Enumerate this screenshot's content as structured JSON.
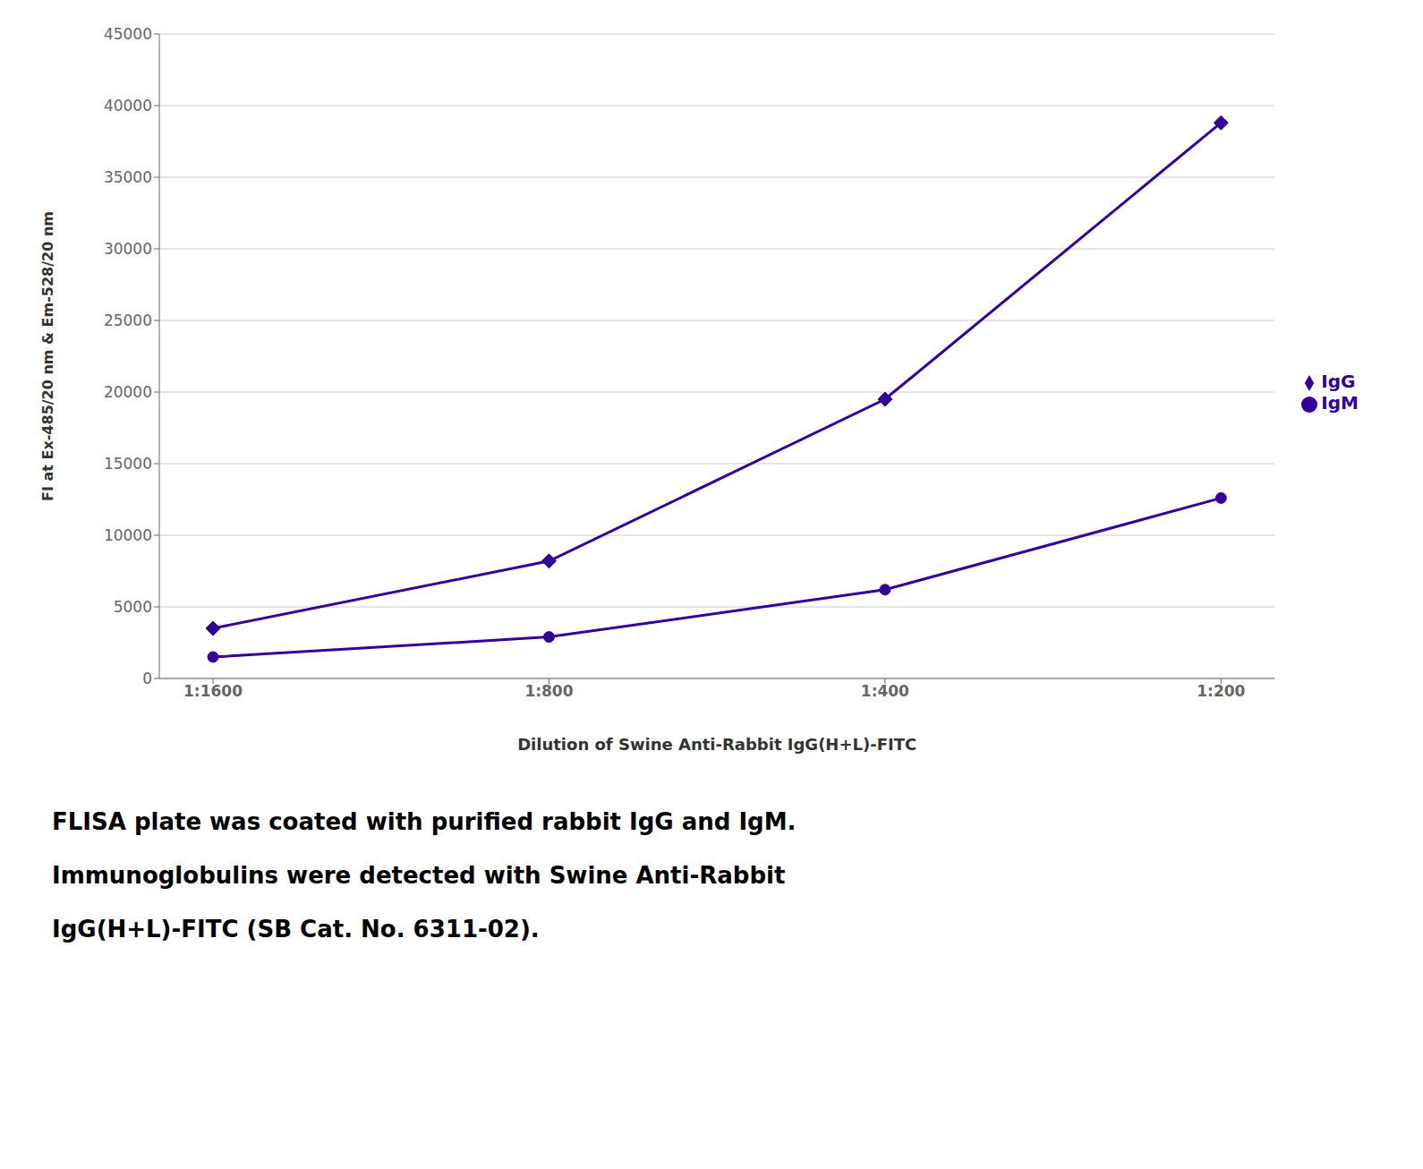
{
  "chart_data": {
    "type": "line",
    "categories": [
      "1:1600",
      "1:800",
      "1:400",
      "1:200"
    ],
    "series": [
      {
        "name": "IgG",
        "color": "#330099",
        "marker": "diamond",
        "values": [
          3500,
          8200,
          19500,
          38800
        ]
      },
      {
        "name": "IgM",
        "color": "#330099",
        "marker": "circle",
        "values": [
          1500,
          2900,
          6200,
          12600
        ]
      }
    ],
    "xlabel": "Dilution of Swine Anti-Rabbit IgG(H+L)-FITC",
    "ylabel": "FI at Ex-485/20 nm & Em-528/20 nm",
    "ylim": [
      0,
      45000
    ],
    "yticks": [
      0,
      5000,
      10000,
      15000,
      20000,
      25000,
      30000,
      35000,
      40000,
      45000
    ],
    "grid": true,
    "legend": "right",
    "annotations": [
      "FLISA plate was coated with purified rabbit IgG and IgM.",
      "Immunoglobulins were detected with Swine Anti-Rabbit",
      "IgG(H+L)-FITC (SB Cat. No. 6311-02)."
    ]
  }
}
